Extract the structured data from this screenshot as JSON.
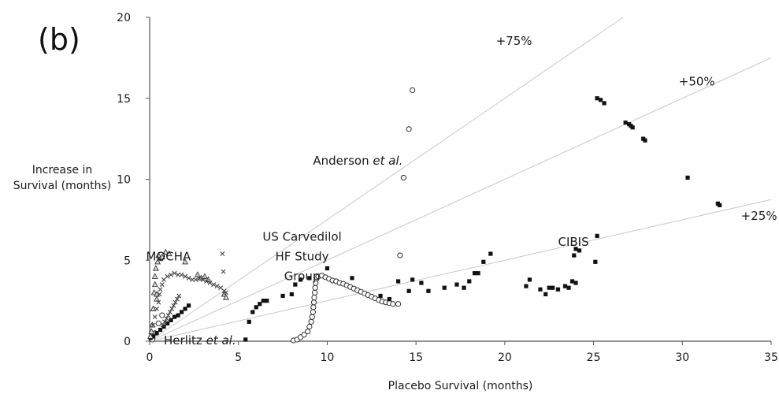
{
  "chart_data": {
    "type": "scatter",
    "panel_label": "(b)",
    "xlabel": "Placebo Survival (months)",
    "ylabel_lines": [
      "Increase in",
      "Survival (months)"
    ],
    "xlim": [
      0,
      35
    ],
    "ylim": [
      0,
      20
    ],
    "xticks": [
      0,
      5,
      10,
      15,
      20,
      25,
      30,
      35
    ],
    "yticks": [
      0,
      5,
      10,
      15,
      20
    ],
    "grid": false,
    "reference_lines": [
      {
        "label": "+75%",
        "slope": 0.75,
        "label_at": [
          19.5,
          18.3
        ]
      },
      {
        "label": "+50%",
        "slope": 0.5,
        "label_at": [
          29.8,
          15.8
        ]
      },
      {
        "label": "+25%",
        "slope": 0.25,
        "label_at": [
          33.3,
          7.5
        ]
      }
    ],
    "annotations": [
      {
        "id": "mocha",
        "lines": [
          {
            "text": "MOCHA"
          }
        ],
        "at": [
          -0.2,
          5.0
        ]
      },
      {
        "id": "us-carvedilol",
        "lines": [
          {
            "text": "US Carvedilol"
          },
          {
            "text": "HF Study"
          },
          {
            "text": "Group"
          }
        ],
        "at": [
          6.5,
          6.2
        ]
      },
      {
        "id": "anderson",
        "lines": [
          {
            "text": "Anderson "
          },
          {
            "text": "et al.",
            "italic": true
          }
        ],
        "at": [
          9.2,
          10.9
        ]
      },
      {
        "id": "cibis",
        "lines": [
          {
            "text": "CIBIS"
          }
        ],
        "at": [
          23.0,
          5.9
        ]
      },
      {
        "id": "herlitz",
        "lines": [
          {
            "text": "Herlitz "
          },
          {
            "text": "et al.",
            "italic": true
          }
        ],
        "at": [
          0.8,
          -0.2
        ]
      }
    ],
    "series": [
      {
        "marker": "open-circle",
        "points": [
          [
            8.1,
            0.05
          ],
          [
            8.3,
            0.1
          ],
          [
            8.5,
            0.25
          ],
          [
            8.7,
            0.4
          ],
          [
            8.9,
            0.6
          ],
          [
            9.0,
            0.9
          ],
          [
            9.1,
            1.2
          ],
          [
            9.15,
            1.5
          ],
          [
            9.2,
            1.8
          ],
          [
            9.22,
            2.1
          ],
          [
            9.25,
            2.4
          ],
          [
            9.27,
            2.7
          ],
          [
            9.3,
            3.0
          ],
          [
            9.32,
            3.3
          ],
          [
            9.35,
            3.6
          ],
          [
            9.4,
            3.85
          ],
          [
            9.5,
            4.0
          ],
          [
            9.7,
            4.05
          ],
          [
            9.9,
            3.95
          ],
          [
            10.1,
            3.85
          ],
          [
            10.3,
            3.75
          ],
          [
            10.5,
            3.7
          ],
          [
            10.7,
            3.6
          ],
          [
            10.9,
            3.55
          ],
          [
            11.1,
            3.45
          ],
          [
            11.3,
            3.35
          ],
          [
            11.5,
            3.25
          ],
          [
            11.7,
            3.15
          ],
          [
            11.9,
            3.05
          ],
          [
            12.1,
            2.95
          ],
          [
            12.3,
            2.85
          ],
          [
            12.5,
            2.75
          ],
          [
            12.7,
            2.65
          ],
          [
            12.9,
            2.55
          ],
          [
            13.1,
            2.45
          ],
          [
            13.3,
            2.4
          ],
          [
            13.5,
            2.35
          ],
          [
            13.7,
            2.3
          ],
          [
            14.0,
            2.3
          ],
          [
            14.1,
            5.3
          ],
          [
            14.3,
            10.1
          ],
          [
            14.6,
            13.1
          ],
          [
            14.8,
            15.5
          ],
          [
            0.15,
            0.1
          ],
          [
            0.3,
            0.5
          ],
          [
            0.5,
            1.1
          ],
          [
            0.7,
            1.6
          ]
        ]
      },
      {
        "marker": "filled-square",
        "points": [
          [
            5.4,
            0.1
          ],
          [
            5.6,
            1.2
          ],
          [
            5.8,
            1.8
          ],
          [
            6.0,
            2.1
          ],
          [
            6.2,
            2.3
          ],
          [
            6.4,
            2.5
          ],
          [
            6.6,
            2.5
          ],
          [
            7.5,
            2.8
          ],
          [
            8.0,
            2.9
          ],
          [
            8.2,
            3.5
          ],
          [
            8.5,
            3.8
          ],
          [
            9.0,
            3.9
          ],
          [
            10.0,
            4.5
          ],
          [
            11.4,
            3.9
          ],
          [
            13.0,
            2.8
          ],
          [
            13.5,
            2.6
          ],
          [
            14.0,
            3.7
          ],
          [
            14.6,
            3.1
          ],
          [
            14.8,
            3.8
          ],
          [
            15.3,
            3.6
          ],
          [
            15.7,
            3.1
          ],
          [
            16.6,
            3.3
          ],
          [
            17.3,
            3.5
          ],
          [
            17.7,
            3.3
          ],
          [
            18.0,
            3.7
          ],
          [
            18.3,
            4.2
          ],
          [
            18.5,
            4.2
          ],
          [
            18.8,
            4.9
          ],
          [
            19.2,
            5.4
          ],
          [
            21.2,
            3.4
          ],
          [
            21.4,
            3.8
          ],
          [
            22.0,
            3.2
          ],
          [
            22.3,
            2.9
          ],
          [
            22.5,
            3.3
          ],
          [
            22.7,
            3.3
          ],
          [
            23.0,
            3.2
          ],
          [
            23.4,
            3.4
          ],
          [
            23.6,
            3.3
          ],
          [
            23.8,
            3.7
          ],
          [
            24.0,
            3.6
          ],
          [
            23.9,
            5.3
          ],
          [
            24.0,
            5.7
          ],
          [
            24.2,
            5.6
          ],
          [
            25.1,
            4.9
          ],
          [
            25.2,
            6.5
          ],
          [
            25.2,
            15.0
          ],
          [
            25.4,
            14.9
          ],
          [
            25.6,
            14.7
          ],
          [
            26.8,
            13.5
          ],
          [
            27.0,
            13.4
          ],
          [
            27.1,
            13.3
          ],
          [
            27.2,
            13.2
          ],
          [
            27.8,
            12.5
          ],
          [
            27.9,
            12.4
          ],
          [
            30.3,
            10.1
          ],
          [
            32.0,
            8.5
          ],
          [
            32.1,
            8.4
          ],
          [
            0.05,
            0.2
          ],
          [
            0.2,
            0.3
          ],
          [
            0.4,
            0.5
          ],
          [
            0.6,
            0.7
          ],
          [
            0.8,
            0.9
          ],
          [
            1.0,
            1.1
          ],
          [
            1.2,
            1.3
          ],
          [
            1.4,
            1.5
          ],
          [
            1.6,
            1.6
          ],
          [
            1.8,
            1.8
          ],
          [
            2.0,
            2.0
          ],
          [
            2.2,
            2.2
          ]
        ]
      },
      {
        "marker": "open-triangle",
        "points": [
          [
            0.05,
            0.3
          ],
          [
            0.1,
            0.6
          ],
          [
            0.15,
            1.0
          ],
          [
            0.2,
            2.0
          ],
          [
            0.25,
            3.0
          ],
          [
            0.3,
            3.5
          ],
          [
            0.3,
            4.0
          ],
          [
            0.35,
            4.5
          ],
          [
            0.4,
            2.6
          ],
          [
            0.4,
            2.9
          ],
          [
            0.45,
            4.9
          ],
          [
            0.5,
            5.3
          ],
          [
            0.6,
            5.1
          ],
          [
            0.7,
            5.2
          ],
          [
            0.9,
            5.5
          ],
          [
            1.1,
            5.4
          ],
          [
            2.0,
            4.9
          ],
          [
            2.7,
            4.1
          ],
          [
            2.9,
            3.9
          ],
          [
            3.1,
            4.0
          ],
          [
            3.3,
            3.8
          ],
          [
            4.2,
            2.9
          ],
          [
            4.3,
            2.7
          ]
        ]
      },
      {
        "marker": "cross",
        "points": [
          [
            0.8,
            3.8
          ],
          [
            1.0,
            4.0
          ],
          [
            1.2,
            4.1
          ],
          [
            1.4,
            4.2
          ],
          [
            1.6,
            4.1
          ],
          [
            1.8,
            4.1
          ],
          [
            2.0,
            4.0
          ],
          [
            2.2,
            3.9
          ],
          [
            2.4,
            3.8
          ],
          [
            2.6,
            3.8
          ],
          [
            2.8,
            3.9
          ],
          [
            3.0,
            3.8
          ],
          [
            3.2,
            3.7
          ],
          [
            3.4,
            3.6
          ],
          [
            3.6,
            3.5
          ],
          [
            3.8,
            3.4
          ],
          [
            4.0,
            3.3
          ],
          [
            4.1,
            5.4
          ],
          [
            4.15,
            4.3
          ],
          [
            4.2,
            3.1
          ],
          [
            4.3,
            3.0
          ],
          [
            0.2,
            1.0
          ],
          [
            0.3,
            1.5
          ],
          [
            0.4,
            2.0
          ],
          [
            0.5,
            2.4
          ],
          [
            0.55,
            2.9
          ],
          [
            0.6,
            3.2
          ],
          [
            0.7,
            3.5
          ],
          [
            0.75,
            1.0
          ],
          [
            0.85,
            1.2
          ],
          [
            0.95,
            1.4
          ],
          [
            1.05,
            1.6
          ],
          [
            1.15,
            1.8
          ],
          [
            1.25,
            2.0
          ],
          [
            1.35,
            2.2
          ],
          [
            1.45,
            2.4
          ],
          [
            1.55,
            2.6
          ],
          [
            1.65,
            2.8
          ]
        ]
      }
    ]
  }
}
